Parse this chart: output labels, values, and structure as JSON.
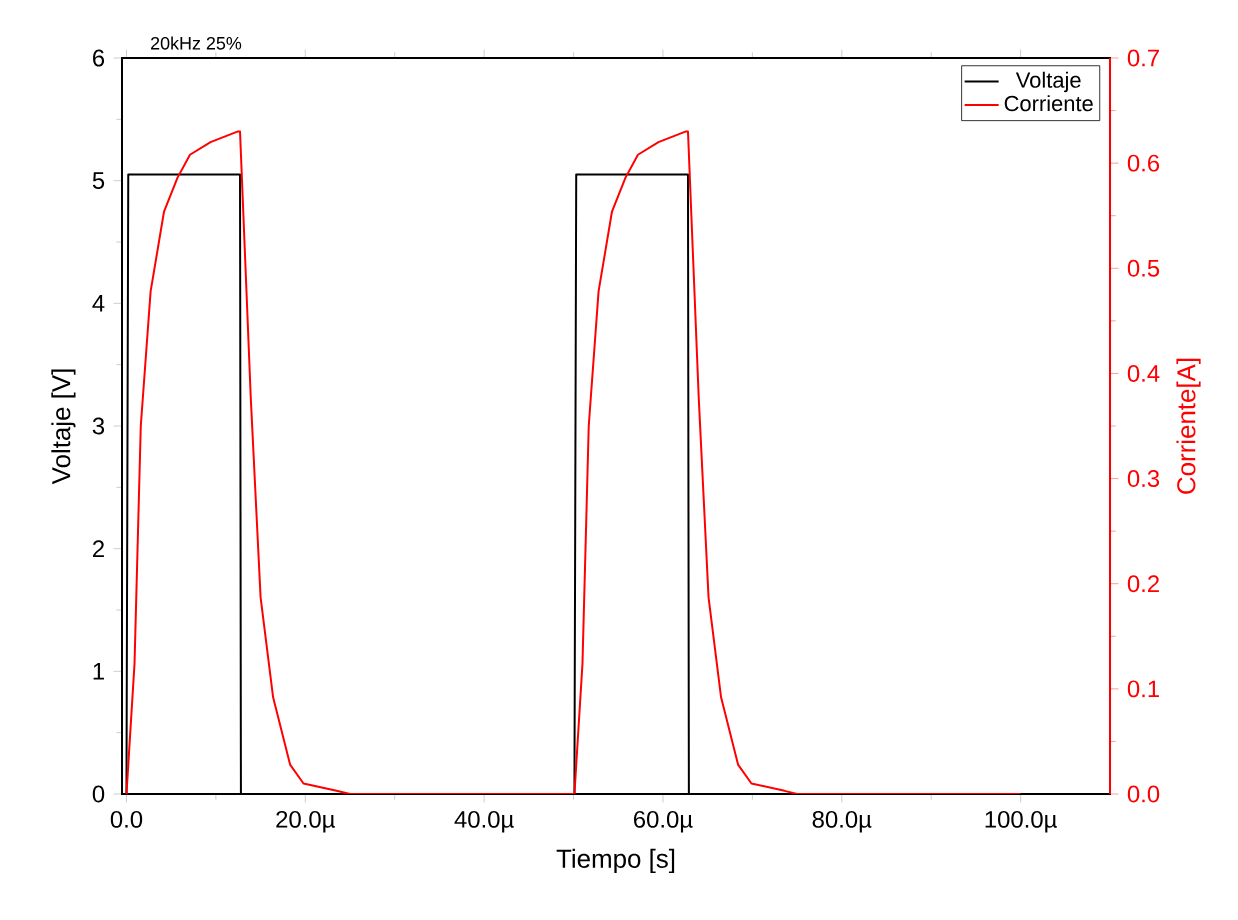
{
  "chart_data": {
    "type": "line",
    "xlabel": "Tiempo [s]",
    "ylabel": "Voltaje [V]",
    "y2label": "Corriente[A]",
    "annotations": [
      "20kHz   25%"
    ],
    "xlim": [
      -0.5,
      110
    ],
    "xticks": [
      {
        "value": 0,
        "label": "0.0"
      },
      {
        "value": 20,
        "label": "20.0µ"
      },
      {
        "value": 40,
        "label": "40.0µ"
      },
      {
        "value": 60,
        "label": "60.0µ"
      },
      {
        "value": 80,
        "label": "80.0µ"
      },
      {
        "value": 100,
        "label": "100.0µ"
      }
    ],
    "ylim": [
      0,
      6
    ],
    "yticks": [
      0,
      1,
      2,
      3,
      4,
      5,
      6
    ],
    "y2lim": [
      0,
      0.7
    ],
    "y2ticks": [
      {
        "value": 0,
        "label": "0.0"
      },
      0.1,
      0.2,
      0.3,
      0.4,
      0.5,
      0.6,
      0.7
    ],
    "legend": "top right",
    "series": [
      {
        "name": "Voltaje",
        "color": "#000000",
        "x": [
          0,
          0.2,
          12.7,
          12.8,
          50.1,
          50.3,
          62.8,
          62.9,
          100
        ],
        "values": [
          0,
          5.05,
          5.05,
          0,
          0,
          5.05,
          5.05,
          0,
          0
        ]
      },
      {
        "name": "Corriente",
        "color": "#ff0000",
        "axis": "y2",
        "x": [
          0,
          0.9,
          1.6,
          2.7,
          4.2,
          5.7,
          7.1,
          9.4,
          12.4,
          12.7,
          13.9,
          15.0,
          16.4,
          18.3,
          19.8,
          23.5,
          25,
          50.1,
          51.0,
          51.7,
          52.8,
          54.3,
          55.8,
          57.2,
          59.5,
          62.5,
          62.8,
          64.0,
          65.1,
          66.5,
          68.4,
          69.9,
          73.6,
          75,
          100
        ],
        "values": [
          0,
          0.124,
          0.35,
          0.478,
          0.554,
          0.586,
          0.608,
          0.62,
          0.63,
          0.63,
          0.377,
          0.187,
          0.092,
          0.028,
          0.01,
          0.003,
          0,
          0,
          0.124,
          0.35,
          0.478,
          0.554,
          0.586,
          0.608,
          0.62,
          0.63,
          0.63,
          0.377,
          0.187,
          0.092,
          0.028,
          0.01,
          0.003,
          0,
          0
        ]
      }
    ]
  }
}
